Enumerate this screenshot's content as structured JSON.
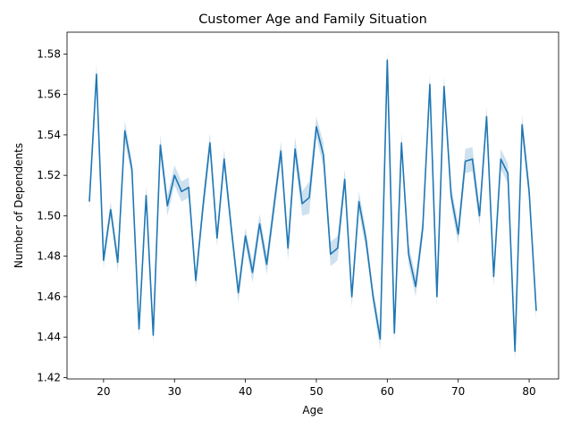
{
  "chart_data": {
    "type": "line",
    "title": "Customer Age and Family Situation",
    "xlabel": "Age",
    "ylabel": "Number of Dependents",
    "xlim": [
      14.85,
      84.15
    ],
    "ylim": [
      1.4193,
      1.5908
    ],
    "xticks": [
      20,
      30,
      40,
      50,
      60,
      70,
      80
    ],
    "yticks": [
      1.42,
      1.44,
      1.46,
      1.48,
      1.5,
      1.52,
      1.54,
      1.56,
      1.58
    ],
    "ytick_labels": [
      "1.42",
      "1.44",
      "1.46",
      "1.48",
      "1.50",
      "1.52",
      "1.54",
      "1.56",
      "1.58"
    ],
    "grid": false,
    "legend": "none",
    "colors": {
      "line": "#1f77b4",
      "band": "#1f77b4"
    },
    "series": [
      {
        "x": [
          18,
          19,
          20,
          21,
          22,
          23,
          24,
          25,
          26,
          27,
          28,
          29,
          30,
          31,
          32,
          33,
          34,
          35,
          36,
          37,
          38,
          39,
          40,
          41,
          42,
          43,
          44,
          45,
          46,
          47,
          48,
          49,
          50,
          51,
          52,
          53,
          54,
          55,
          56,
          57,
          58,
          59,
          60,
          61,
          62,
          63,
          64,
          65,
          66,
          67,
          68,
          69,
          70,
          71,
          72,
          73,
          74,
          75,
          76,
          77,
          78,
          79,
          80,
          81
        ],
        "y": [
          1.507,
          1.57,
          1.478,
          1.503,
          1.477,
          1.542,
          1.523,
          1.444,
          1.51,
          1.441,
          1.535,
          1.505,
          1.52,
          1.512,
          1.514,
          1.468,
          1.504,
          1.536,
          1.489,
          1.528,
          1.494,
          1.462,
          1.49,
          1.472,
          1.496,
          1.476,
          1.504,
          1.532,
          1.484,
          1.533,
          1.506,
          1.509,
          1.544,
          1.53,
          1.481,
          1.484,
          1.518,
          1.46,
          1.507,
          1.488,
          1.46,
          1.439,
          1.577,
          1.442,
          1.536,
          1.481,
          1.465,
          1.494,
          1.565,
          1.46,
          1.564,
          1.51,
          1.491,
          1.527,
          1.528,
          1.5,
          1.549,
          1.47,
          1.528,
          1.521,
          1.433,
          1.545,
          1.512,
          1.453
        ],
        "ci_low": [
          1.502,
          1.565,
          1.474,
          1.5,
          1.472,
          1.537,
          1.519,
          1.44,
          1.505,
          1.437,
          1.53,
          1.5,
          1.515,
          1.507,
          1.509,
          1.464,
          1.499,
          1.531,
          1.485,
          1.523,
          1.49,
          1.457,
          1.486,
          1.467,
          1.492,
          1.471,
          1.499,
          1.527,
          1.478,
          1.527,
          1.5,
          1.501,
          1.539,
          1.524,
          1.475,
          1.478,
          1.513,
          1.455,
          1.502,
          1.483,
          1.456,
          1.434,
          1.572,
          1.438,
          1.531,
          1.476,
          1.46,
          1.489,
          1.56,
          1.455,
          1.559,
          1.505,
          1.486,
          1.521,
          1.522,
          1.495,
          1.544,
          1.465,
          1.523,
          1.516,
          1.428,
          1.54,
          1.507,
          1.448
        ],
        "ci_high": [
          1.512,
          1.575,
          1.482,
          1.507,
          1.482,
          1.547,
          1.527,
          1.448,
          1.515,
          1.446,
          1.54,
          1.51,
          1.525,
          1.517,
          1.519,
          1.472,
          1.509,
          1.541,
          1.493,
          1.533,
          1.498,
          1.467,
          1.494,
          1.477,
          1.501,
          1.481,
          1.509,
          1.537,
          1.49,
          1.539,
          1.512,
          1.517,
          1.549,
          1.536,
          1.487,
          1.49,
          1.523,
          1.465,
          1.512,
          1.493,
          1.464,
          1.444,
          1.582,
          1.446,
          1.541,
          1.486,
          1.47,
          1.499,
          1.57,
          1.465,
          1.569,
          1.515,
          1.496,
          1.533,
          1.534,
          1.505,
          1.554,
          1.475,
          1.533,
          1.526,
          1.438,
          1.55,
          1.517,
          1.458
        ]
      }
    ]
  }
}
